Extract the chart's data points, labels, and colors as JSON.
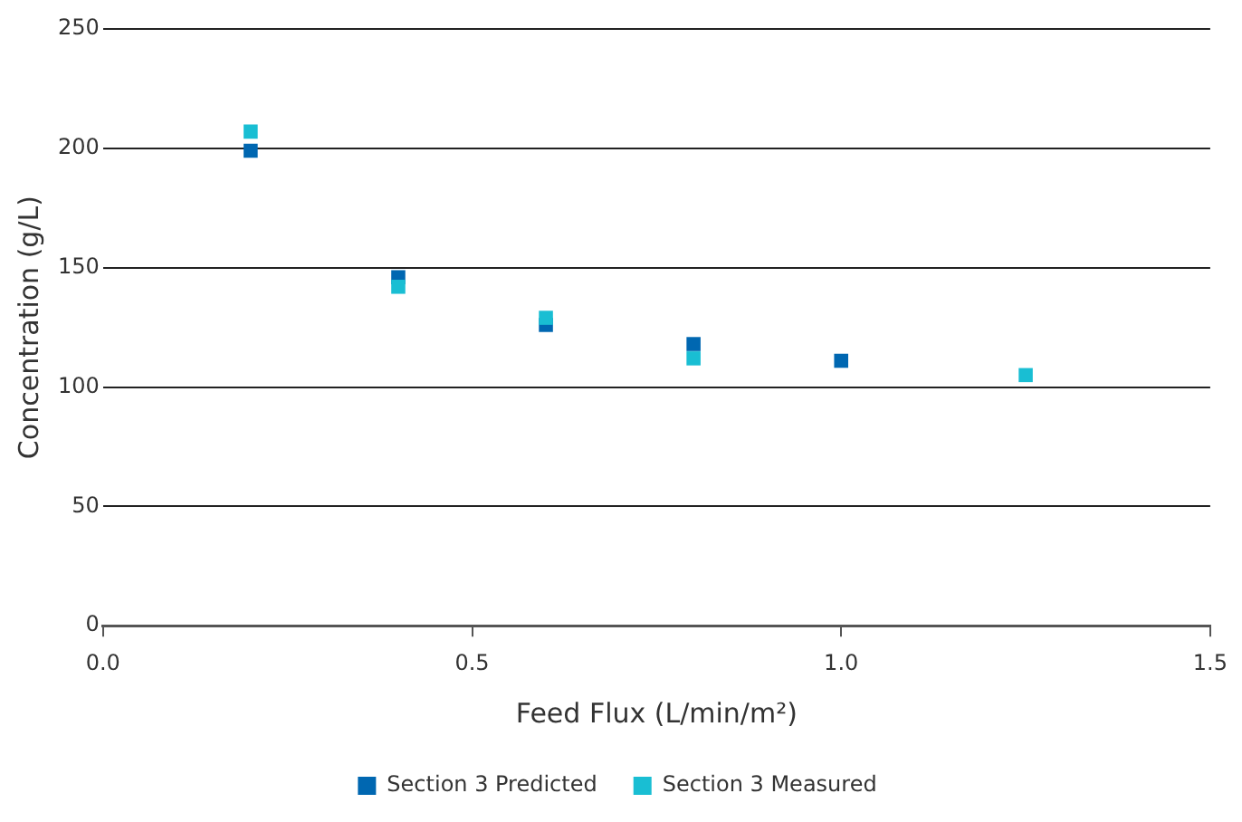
{
  "chart_data": {
    "type": "scatter",
    "xlabel": "Feed Flux (L/min/m²)",
    "ylabel": "Concentration (g/L)",
    "xlim": [
      0,
      1.5
    ],
    "xticks": [
      {
        "value": 0,
        "label": "0.0"
      },
      0.5,
      {
        "value": 1,
        "label": "1.0"
      },
      1.5
    ],
    "ylim": [
      0,
      250
    ],
    "yticks": [
      0,
      50,
      100,
      150,
      200,
      250
    ],
    "grid": "y",
    "legend": "bottom",
    "marker": "square",
    "series": [
      {
        "name": "Section 3 Predicted",
        "color": "#0067b1",
        "x": [
          0.2,
          0.4,
          0.6,
          0.8,
          1.0
        ],
        "values": [
          199,
          146,
          126,
          118,
          111
        ]
      },
      {
        "name": "Section 3 Measured",
        "color": "#19bed3",
        "x": [
          0.2,
          0.4,
          0.6,
          0.8,
          1.25
        ],
        "values": [
          207,
          142,
          129,
          112,
          105
        ]
      }
    ]
  }
}
